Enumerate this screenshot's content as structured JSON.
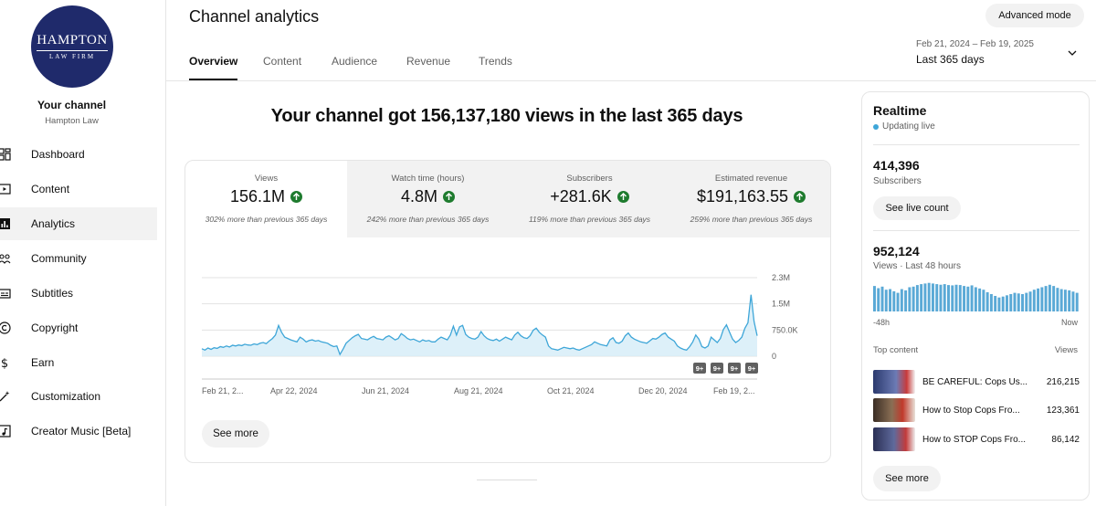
{
  "sidebar": {
    "logo": {
      "line1": "HAMPTON",
      "line2": "LAW FIRM"
    },
    "channel_name": "Your channel",
    "channel_handle": "Hampton Law",
    "items": [
      {
        "label": "Dashboard",
        "icon": "dashboard-icon"
      },
      {
        "label": "Content",
        "icon": "content-icon"
      },
      {
        "label": "Analytics",
        "icon": "analytics-icon",
        "active": true
      },
      {
        "label": "Community",
        "icon": "community-icon"
      },
      {
        "label": "Subtitles",
        "icon": "subtitles-icon"
      },
      {
        "label": "Copyright",
        "icon": "copyright-icon"
      },
      {
        "label": "Earn",
        "icon": "earn-icon"
      },
      {
        "label": "Customization",
        "icon": "customization-icon"
      },
      {
        "label": "Creator Music [Beta]",
        "icon": "creator-music-icon"
      }
    ]
  },
  "header": {
    "title": "Channel analytics",
    "advanced_mode": "Advanced mode",
    "tabs": [
      "Overview",
      "Content",
      "Audience",
      "Revenue",
      "Trends"
    ],
    "active_tab": "Overview",
    "date_range": "Feb 21, 2024 – Feb 19, 2025",
    "date_label": "Last 365 days"
  },
  "main": {
    "headline": "Your channel got 156,137,180 views in the last 365 days",
    "metrics": [
      {
        "label": "Views",
        "value": "156.1M",
        "sub": "302% more than previous 365 days"
      },
      {
        "label": "Watch time (hours)",
        "value": "4.8M",
        "sub": "242% more than previous 365 days"
      },
      {
        "label": "Subscribers",
        "value": "+281.6K",
        "sub": "119% more than previous 365 days"
      },
      {
        "label": "Estimated revenue",
        "value": "$191,163.55",
        "sub": "259% more than previous 365 days"
      }
    ],
    "see_more": "See more",
    "chart_badges": [
      "9+",
      "9+",
      "9+",
      "9+"
    ]
  },
  "chart_data": {
    "type": "area",
    "x_labels": [
      "Feb 21, 2...",
      "Apr 22, 2024",
      "Jun 21, 2024",
      "Aug 21, 2024",
      "Oct 21, 2024",
      "Dec 20, 2024",
      "Feb 19, 2..."
    ],
    "y_ticks": [
      "2.3M",
      "1.5M",
      "750.0K",
      "0"
    ],
    "ylim": [
      0,
      2300000
    ],
    "series": [
      {
        "values": [
          220000,
          180000,
          240000,
          200000,
          250000,
          230000,
          280000,
          260000,
          300000,
          270000,
          320000,
          300000,
          330000,
          310000,
          350000,
          330000,
          320000,
          360000,
          340000,
          380000,
          400000,
          370000,
          450000,
          520000,
          620000,
          900000,
          700000,
          560000,
          520000,
          480000,
          450000,
          420000,
          560000,
          500000,
          420000,
          460000,
          480000,
          440000,
          460000,
          420000,
          400000,
          380000,
          320000,
          280000,
          300000,
          50000,
          200000,
          380000,
          460000,
          540000,
          600000,
          640000,
          520000,
          500000,
          480000,
          540000,
          580000,
          520000,
          500000,
          480000,
          560000,
          600000,
          540000,
          480000,
          520000,
          660000,
          600000,
          520000,
          480000,
          500000,
          460000,
          420000,
          480000,
          440000,
          460000,
          420000,
          420000,
          500000,
          560000,
          520000,
          480000,
          620000,
          880000,
          620000,
          860000,
          900000,
          640000,
          560000,
          520000,
          500000,
          560000,
          720000,
          600000,
          520000,
          480000,
          460000,
          500000,
          440000,
          500000,
          560000,
          520000,
          480000,
          620000,
          700000,
          600000,
          540000,
          520000,
          600000,
          760000,
          820000,
          700000,
          620000,
          560000,
          300000,
          220000,
          200000,
          180000,
          220000,
          260000,
          240000,
          220000,
          240000,
          200000,
          180000,
          220000,
          260000,
          300000,
          340000,
          420000,
          380000,
          340000,
          320000,
          300000,
          480000,
          540000,
          400000,
          380000,
          440000,
          600000,
          680000,
          560000,
          500000,
          460000,
          420000,
          400000,
          380000,
          450000,
          520000,
          500000,
          560000,
          640000,
          680000,
          560000,
          500000,
          440000,
          300000,
          240000,
          200000,
          180000,
          280000,
          420000,
          620000,
          500000,
          280000,
          240000,
          300000,
          560000,
          480000,
          400000,
          520000,
          780000,
          920000,
          700000,
          500000,
          400000,
          460000,
          560000,
          820000,
          980000,
          1800000,
          1020000,
          600000
        ]
      }
    ]
  },
  "realtime": {
    "title": "Realtime",
    "live": "Updating live",
    "subscribers_value": "414,396",
    "subscribers_label": "Subscribers",
    "live_count_btn": "See live count",
    "views_value": "952,124",
    "views_label": "Views · Last 48 hours",
    "bars": [
      0.82,
      0.75,
      0.8,
      0.7,
      0.72,
      0.65,
      0.6,
      0.72,
      0.68,
      0.78,
      0.8,
      0.85,
      0.88,
      0.9,
      0.92,
      0.9,
      0.88,
      0.86,
      0.88,
      0.85,
      0.84,
      0.86,
      0.85,
      0.82,
      0.8,
      0.84,
      0.78,
      0.74,
      0.7,
      0.62,
      0.56,
      0.5,
      0.45,
      0.48,
      0.52,
      0.56,
      0.6,
      0.58,
      0.56,
      0.6,
      0.64,
      0.7,
      0.74,
      0.78,
      0.82,
      0.86,
      0.82,
      0.76,
      0.72,
      0.7,
      0.68,
      0.64,
      0.6
    ],
    "bar_color": "#5aa9d6",
    "left_label": "-48h",
    "right_label": "Now",
    "top_content_label": "Top content",
    "views_col_label": "Views",
    "top_content": [
      {
        "title": "BE CAREFUL: Cops Us...",
        "views": "216,215"
      },
      {
        "title": "How to Stop Cops Fro...",
        "views": "123,361"
      },
      {
        "title": "How to STOP Cops Fro...",
        "views": "86,142"
      }
    ],
    "see_more": "See more"
  },
  "colors": {
    "accent": "#3ea6d8",
    "up_green": "#1e7b2e",
    "logo_navy": "#1f2a6b"
  }
}
